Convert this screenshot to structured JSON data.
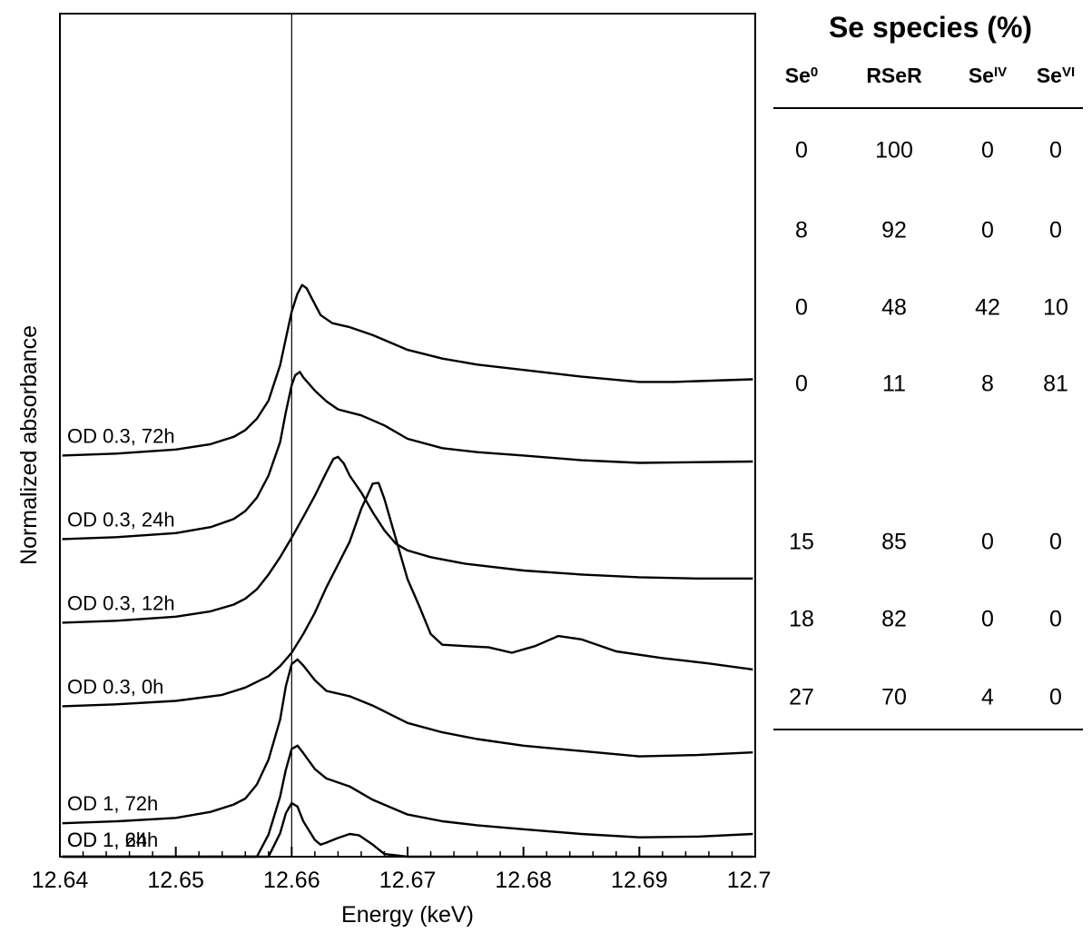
{
  "chart_data": {
    "type": "line",
    "title": "",
    "xlabel": "Energy (keV)",
    "ylabel": "Normalized absorbance",
    "xlim": [
      12.64,
      12.7
    ],
    "x_ticks": [
      "12.64",
      "12.65",
      "12.66",
      "12.67",
      "12.68",
      "12.69",
      "12.70"
    ],
    "y_ticks": [],
    "reference_line_x": 12.66,
    "grid": false,
    "legend": "none",
    "series_note": "Spectra are vertically offset stacks; y values are stacked normalized absorbance (baseline of each trace offset).",
    "series": [
      {
        "name": "OD 0.3, 72h",
        "offset": 6.0,
        "points": [
          [
            12.6402,
            0.0
          ],
          [
            12.645,
            0.03
          ],
          [
            12.65,
            0.09
          ],
          [
            12.653,
            0.17
          ],
          [
            12.655,
            0.28
          ],
          [
            12.656,
            0.38
          ],
          [
            12.657,
            0.55
          ],
          [
            12.658,
            0.82
          ],
          [
            12.659,
            1.35
          ],
          [
            12.6595,
            1.75
          ],
          [
            12.66,
            2.15
          ],
          [
            12.6605,
            2.42
          ],
          [
            12.6609,
            2.55
          ],
          [
            12.6613,
            2.5
          ],
          [
            12.6618,
            2.33
          ],
          [
            12.6625,
            2.1
          ],
          [
            12.6635,
            1.98
          ],
          [
            12.665,
            1.92
          ],
          [
            12.667,
            1.8
          ],
          [
            12.67,
            1.58
          ],
          [
            12.673,
            1.45
          ],
          [
            12.676,
            1.36
          ],
          [
            12.68,
            1.28
          ],
          [
            12.685,
            1.18
          ],
          [
            12.69,
            1.1
          ],
          [
            12.693,
            1.1
          ],
          [
            12.6998,
            1.14
          ]
        ]
      },
      {
        "name": "OD 0.3, 24h",
        "offset": 4.75,
        "points": [
          [
            12.6402,
            0.0
          ],
          [
            12.645,
            0.03
          ],
          [
            12.65,
            0.09
          ],
          [
            12.653,
            0.18
          ],
          [
            12.655,
            0.3
          ],
          [
            12.656,
            0.42
          ],
          [
            12.657,
            0.62
          ],
          [
            12.658,
            0.95
          ],
          [
            12.659,
            1.45
          ],
          [
            12.6595,
            1.9
          ],
          [
            12.66,
            2.3
          ],
          [
            12.6603,
            2.45
          ],
          [
            12.6607,
            2.5
          ],
          [
            12.661,
            2.42
          ],
          [
            12.662,
            2.22
          ],
          [
            12.663,
            2.06
          ],
          [
            12.664,
            1.94
          ],
          [
            12.666,
            1.85
          ],
          [
            12.668,
            1.7
          ],
          [
            12.67,
            1.5
          ],
          [
            12.673,
            1.36
          ],
          [
            12.676,
            1.3
          ],
          [
            12.68,
            1.25
          ],
          [
            12.685,
            1.18
          ],
          [
            12.69,
            1.14
          ],
          [
            12.6998,
            1.16
          ]
        ]
      },
      {
        "name": "OD 0.3, 12h",
        "offset": 3.5,
        "points": [
          [
            12.6402,
            0.0
          ],
          [
            12.645,
            0.03
          ],
          [
            12.65,
            0.09
          ],
          [
            12.653,
            0.17
          ],
          [
            12.655,
            0.27
          ],
          [
            12.656,
            0.36
          ],
          [
            12.657,
            0.5
          ],
          [
            12.658,
            0.72
          ],
          [
            12.659,
            0.98
          ],
          [
            12.66,
            1.27
          ],
          [
            12.661,
            1.58
          ],
          [
            12.662,
            1.9
          ],
          [
            12.663,
            2.25
          ],
          [
            12.6636,
            2.45
          ],
          [
            12.664,
            2.48
          ],
          [
            12.6645,
            2.38
          ],
          [
            12.665,
            2.2
          ],
          [
            12.666,
            1.95
          ],
          [
            12.667,
            1.65
          ],
          [
            12.668,
            1.38
          ],
          [
            12.669,
            1.18
          ],
          [
            12.67,
            1.08
          ],
          [
            12.672,
            0.98
          ],
          [
            12.675,
            0.88
          ],
          [
            12.68,
            0.78
          ],
          [
            12.685,
            0.72
          ],
          [
            12.69,
            0.68
          ],
          [
            12.695,
            0.66
          ],
          [
            12.6998,
            0.66
          ]
        ]
      },
      {
        "name": "OD 0.3, 0h",
        "offset": 2.25,
        "points": [
          [
            12.6402,
            0.0
          ],
          [
            12.645,
            0.03
          ],
          [
            12.65,
            0.08
          ],
          [
            12.654,
            0.17
          ],
          [
            12.656,
            0.28
          ],
          [
            12.658,
            0.45
          ],
          [
            12.659,
            0.6
          ],
          [
            12.66,
            0.8
          ],
          [
            12.661,
            1.08
          ],
          [
            12.662,
            1.4
          ],
          [
            12.663,
            1.78
          ],
          [
            12.664,
            2.12
          ],
          [
            12.665,
            2.46
          ],
          [
            12.666,
            2.95
          ],
          [
            12.667,
            3.33
          ],
          [
            12.6675,
            3.34
          ],
          [
            12.668,
            3.1
          ],
          [
            12.669,
            2.5
          ],
          [
            12.67,
            1.9
          ],
          [
            12.671,
            1.5
          ],
          [
            12.672,
            1.08
          ],
          [
            12.673,
            0.92
          ],
          [
            12.675,
            0.9
          ],
          [
            12.677,
            0.88
          ],
          [
            12.679,
            0.8
          ],
          [
            12.681,
            0.9
          ],
          [
            12.683,
            1.05
          ],
          [
            12.685,
            1.0
          ],
          [
            12.688,
            0.82
          ],
          [
            12.692,
            0.72
          ],
          [
            12.696,
            0.64
          ],
          [
            12.6998,
            0.55
          ]
        ]
      },
      {
        "name": "OD 1, 72h",
        "offset": 0.5,
        "points": [
          [
            12.6402,
            0.0
          ],
          [
            12.645,
            0.03
          ],
          [
            12.65,
            0.08
          ],
          [
            12.653,
            0.17
          ],
          [
            12.655,
            0.28
          ],
          [
            12.656,
            0.37
          ],
          [
            12.657,
            0.58
          ],
          [
            12.658,
            0.95
          ],
          [
            12.659,
            1.55
          ],
          [
            12.6595,
            2.05
          ],
          [
            12.66,
            2.38
          ],
          [
            12.6605,
            2.45
          ],
          [
            12.661,
            2.36
          ],
          [
            12.662,
            2.14
          ],
          [
            12.663,
            1.98
          ],
          [
            12.665,
            1.9
          ],
          [
            12.667,
            1.76
          ],
          [
            12.67,
            1.5
          ],
          [
            12.673,
            1.36
          ],
          [
            12.676,
            1.26
          ],
          [
            12.68,
            1.16
          ],
          [
            12.685,
            1.08
          ],
          [
            12.69,
            1.0
          ],
          [
            12.695,
            1.02
          ],
          [
            12.6998,
            1.06
          ]
        ]
      },
      {
        "name": "OD 1, 24h",
        "offset": -0.75,
        "points": [
          [
            12.6402,
            0.0
          ],
          [
            12.645,
            0.03
          ],
          [
            12.65,
            0.08
          ],
          [
            12.653,
            0.17
          ],
          [
            12.655,
            0.29
          ],
          [
            12.656,
            0.4
          ],
          [
            12.657,
            0.66
          ],
          [
            12.658,
            1.08
          ],
          [
            12.659,
            1.65
          ],
          [
            12.6595,
            2.05
          ],
          [
            12.66,
            2.36
          ],
          [
            12.6605,
            2.41
          ],
          [
            12.661,
            2.3
          ],
          [
            12.662,
            2.06
          ],
          [
            12.663,
            1.92
          ],
          [
            12.665,
            1.8
          ],
          [
            12.667,
            1.6
          ],
          [
            12.67,
            1.38
          ],
          [
            12.673,
            1.28
          ],
          [
            12.676,
            1.22
          ],
          [
            12.68,
            1.16
          ],
          [
            12.685,
            1.09
          ],
          [
            12.69,
            1.04
          ],
          [
            12.695,
            1.05
          ],
          [
            12.6998,
            1.09
          ]
        ]
      },
      {
        "name": "OD 1, 6h",
        "offset": -1.8,
        "points": [
          [
            12.6402,
            0.0
          ],
          [
            12.645,
            0.06
          ],
          [
            12.65,
            0.17
          ],
          [
            12.653,
            0.31
          ],
          [
            12.655,
            0.52
          ],
          [
            12.656,
            0.7
          ],
          [
            12.657,
            1.0
          ],
          [
            12.658,
            1.52
          ],
          [
            12.659,
            2.15
          ],
          [
            12.6595,
            2.45
          ],
          [
            12.66,
            2.6
          ],
          [
            12.6605,
            2.55
          ],
          [
            12.661,
            2.33
          ],
          [
            12.662,
            2.05
          ],
          [
            12.6625,
            1.98
          ],
          [
            12.663,
            2.01
          ],
          [
            12.664,
            2.08
          ],
          [
            12.665,
            2.14
          ],
          [
            12.6658,
            2.12
          ],
          [
            12.667,
            1.98
          ],
          [
            12.668,
            1.84
          ],
          [
            12.67,
            1.72
          ],
          [
            12.673,
            1.66
          ],
          [
            12.676,
            1.6
          ],
          [
            12.68,
            1.52
          ],
          [
            12.685,
            1.44
          ],
          [
            12.69,
            1.42
          ],
          [
            12.695,
            1.43
          ],
          [
            12.6998,
            1.45
          ]
        ]
      }
    ]
  },
  "table": {
    "title": "Se species (%)",
    "headers": [
      {
        "base": "Se",
        "sup": "0"
      },
      {
        "base": "RSeR",
        "sup": ""
      },
      {
        "base": "Se",
        "sup": "IV"
      },
      {
        "base": "Se",
        "sup": "VI"
      }
    ],
    "rows": [
      [
        "0",
        "100",
        "0",
        "0"
      ],
      [
        "8",
        "92",
        "0",
        "0"
      ],
      [
        "0",
        "48",
        "42",
        "10"
      ],
      [
        "0",
        "11",
        "8",
        "81"
      ],
      [
        "15",
        "85",
        "0",
        "0"
      ],
      [
        "18",
        "82",
        "0",
        "0"
      ],
      [
        "27",
        "70",
        "4",
        "0"
      ]
    ]
  }
}
